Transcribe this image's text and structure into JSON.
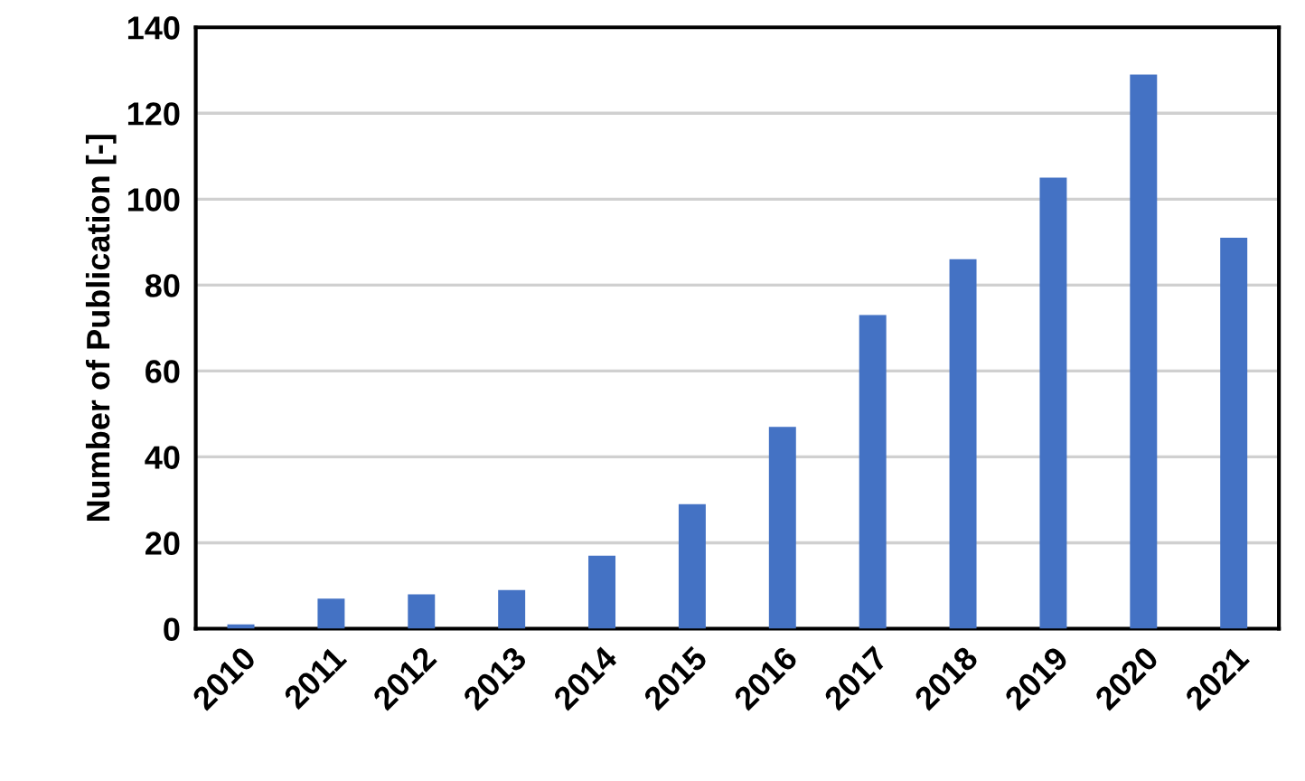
{
  "chart_data": {
    "type": "bar",
    "ylabel": "Number of Publication [-]",
    "categories": [
      "2010",
      "2011",
      "2012",
      "2013",
      "2014",
      "2015",
      "2016",
      "2017",
      "2018",
      "2019",
      "2020",
      "2021"
    ],
    "values": [
      1,
      7,
      8,
      9,
      17,
      29,
      47,
      73,
      86,
      105,
      129,
      91
    ],
    "color": "#4472c4",
    "ylim": [
      0,
      140
    ],
    "yticks": [
      0,
      20,
      40,
      60,
      80,
      100,
      120,
      140
    ],
    "grid": "y"
  }
}
